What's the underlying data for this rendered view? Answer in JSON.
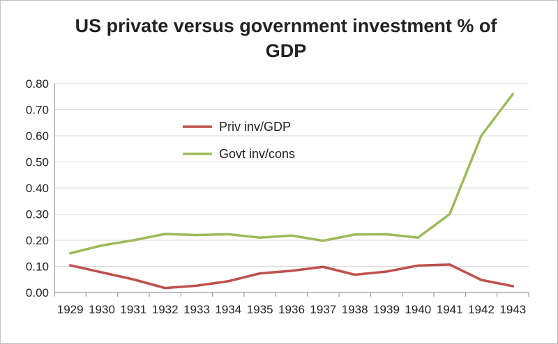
{
  "chart_data": {
    "type": "line",
    "title_line1": "US private versus government investment % of",
    "title_line2": "GDP",
    "categories": [
      "1929",
      "1930",
      "1931",
      "1932",
      "1933",
      "1934",
      "1935",
      "1936",
      "1937",
      "1938",
      "1939",
      "1940",
      "1941",
      "1942",
      "1943"
    ],
    "ylim": [
      0,
      0.8
    ],
    "yticks": [
      "0.00",
      "0.10",
      "0.20",
      "0.30",
      "0.40",
      "0.50",
      "0.60",
      "0.70",
      "0.80"
    ],
    "grid": true,
    "legend_position": "inside-top-center",
    "series": [
      {
        "name": "Priv inv/GDP",
        "color": "#c0504d",
        "values": [
          0.104,
          0.077,
          0.05,
          0.017,
          0.026,
          0.043,
          0.073,
          0.083,
          0.098,
          0.068,
          0.08,
          0.103,
          0.107,
          0.048,
          0.024
        ]
      },
      {
        "name": "Govt inv/cons",
        "color": "#9bbb59",
        "values": [
          0.15,
          0.18,
          0.2,
          0.224,
          0.22,
          0.223,
          0.21,
          0.218,
          0.198,
          0.222,
          0.223,
          0.21,
          0.3,
          0.6,
          0.76
        ]
      }
    ]
  }
}
